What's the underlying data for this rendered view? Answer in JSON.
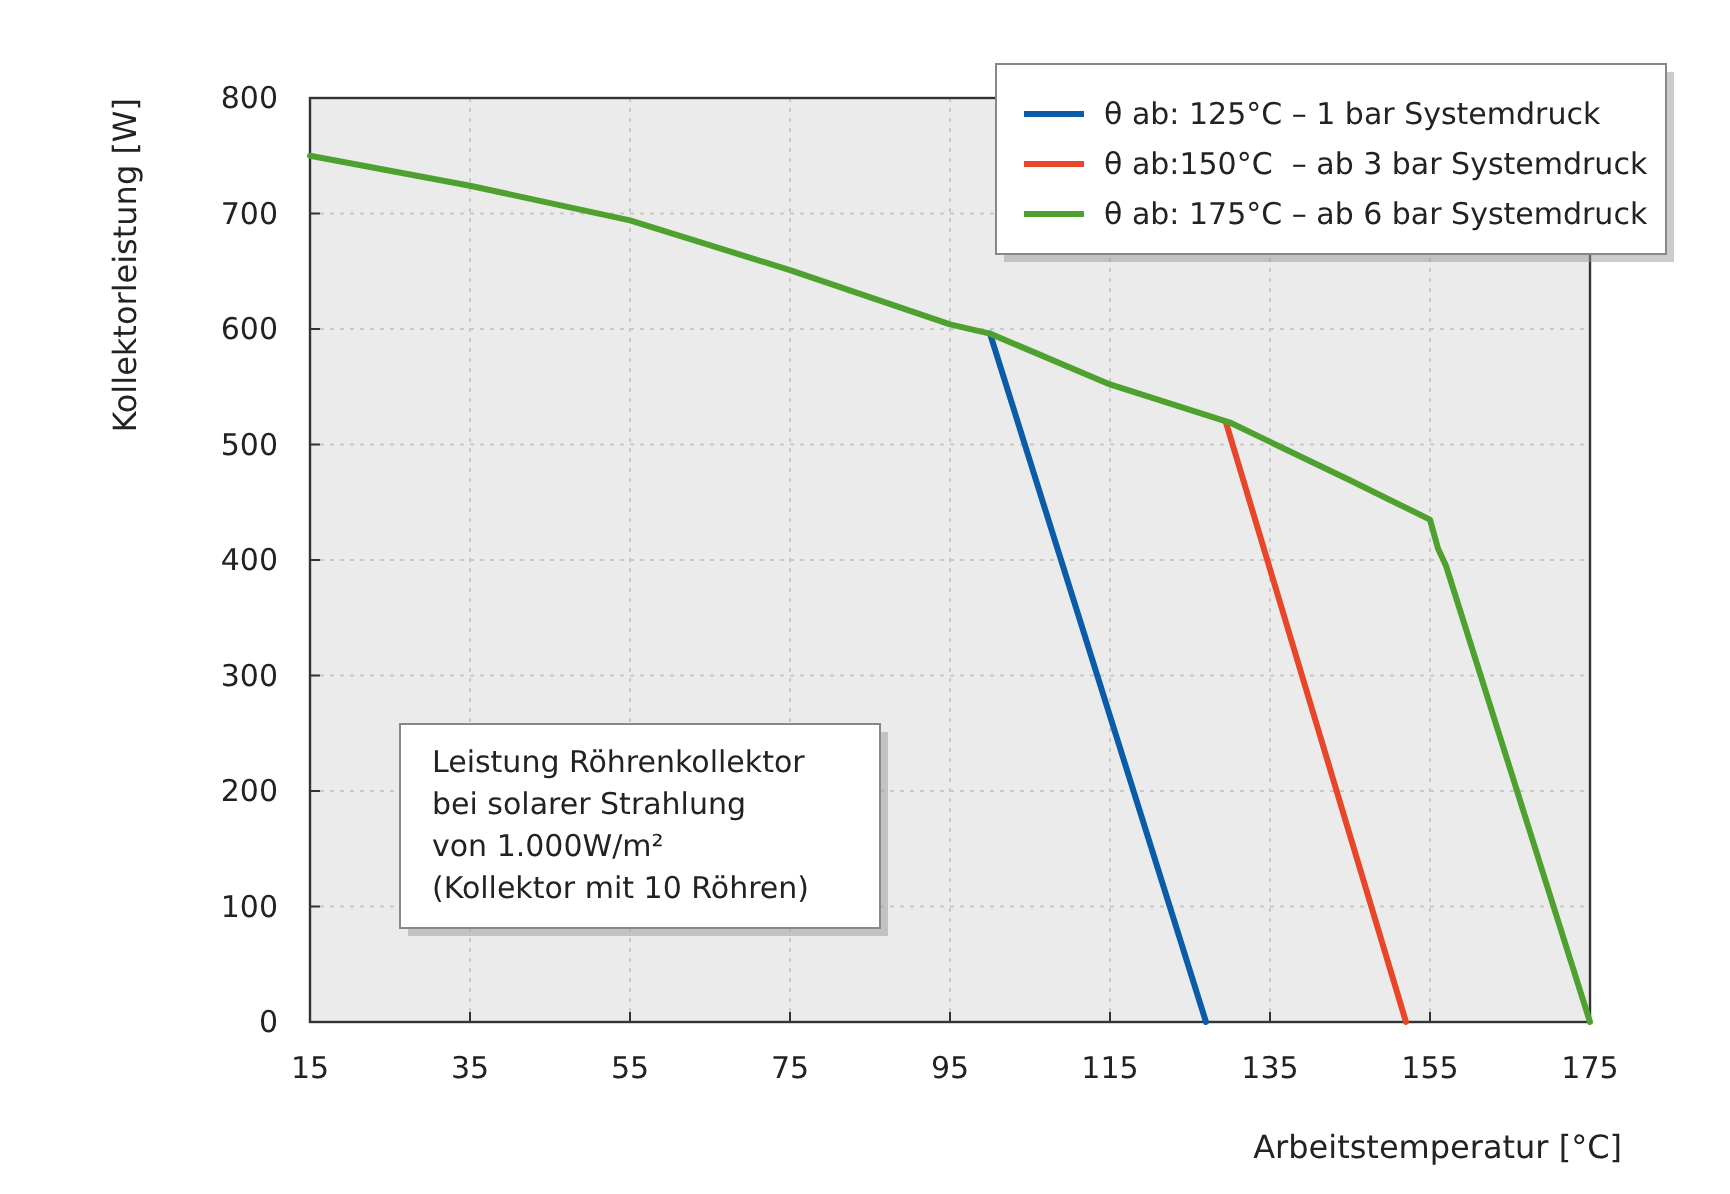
{
  "chart_data": {
    "type": "line",
    "xlabel": "Arbeitstemperatur [°C]",
    "ylabel": "Kollektorleistung [W]",
    "xlim": [
      15,
      175
    ],
    "xticks": [
      15,
      35,
      55,
      75,
      95,
      115,
      135,
      155,
      175
    ],
    "ylim": [
      0,
      800
    ],
    "yticks": [
      0,
      100,
      200,
      300,
      400,
      500,
      600,
      700,
      800
    ],
    "grid": true,
    "legend": "top right",
    "marker": "none",
    "line_style": "solid",
    "annotations": [
      "Leistung Röhrenkollektor\nbei solarer Strahlung\nvon 1.000W/m²\n(Kollektor mit 10 Röhren)"
    ],
    "series": [
      {
        "name": "θ ab: 125°C – 1 bar Systemdruck",
        "color": "#0a5ca8",
        "x": [
          100,
          127
        ],
        "values": [
          596,
          0
        ]
      },
      {
        "name": "θ ab:150°C  – ab 3 bar Systemdruck",
        "color": "#e8452a",
        "x": [
          129.5,
          152
        ],
        "values": [
          519,
          0
        ]
      },
      {
        "name": "θ ab: 175°C – ab 6 bar Systemdruck",
        "color": "#4ea12f",
        "x": [
          15,
          35,
          55,
          75,
          95,
          100,
          115,
          130,
          145,
          150,
          155,
          156,
          157,
          175
        ],
        "values": [
          750,
          724,
          694,
          651,
          604,
          596,
          552,
          519,
          469,
          452,
          435,
          410,
          395,
          0
        ]
      }
    ]
  }
}
